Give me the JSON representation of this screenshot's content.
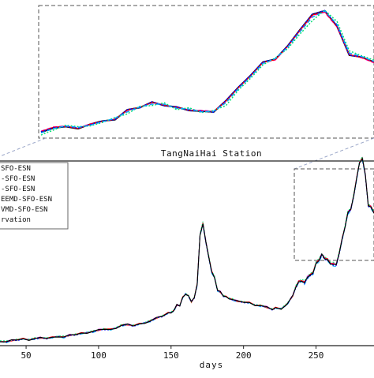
{
  "chart_data": [
    {
      "type": "line",
      "role": "zoomed-inset",
      "title": "",
      "xlim": [
        236,
        290
      ],
      "ylim": [
        150,
        510
      ],
      "axes_visible": false,
      "border_style": "dashed",
      "series": [
        {
          "key": "s1",
          "color": "#000000",
          "style": "solid",
          "x": [
            236,
            238,
            240,
            242,
            244,
            246,
            248,
            250,
            252,
            254,
            256,
            258,
            260,
            262,
            264,
            266,
            268,
            270,
            272,
            274,
            276,
            278,
            280,
            282,
            284,
            286,
            288,
            290
          ],
          "y": [
            160,
            172,
            176,
            170,
            183,
            192,
            196,
            224,
            230,
            246,
            236,
            232,
            222,
            220,
            218,
            250,
            288,
            322,
            360,
            368,
            406,
            452,
            496,
            506,
            462,
            380,
            374,
            360
          ]
        },
        {
          "key": "s2",
          "color": "#ff00ff",
          "style": "dashed",
          "x": [
            236,
            238,
            240,
            242,
            244,
            246,
            248,
            250,
            252,
            254,
            256,
            258,
            260,
            262,
            264,
            266,
            268,
            270,
            272,
            274,
            276,
            278,
            280,
            282,
            284,
            286,
            288,
            290
          ],
          "y": [
            163,
            175,
            178,
            172,
            184,
            190,
            198,
            222,
            232,
            244,
            238,
            230,
            224,
            222,
            220,
            248,
            286,
            320,
            358,
            366,
            404,
            450,
            492,
            502,
            460,
            382,
            372,
            358
          ]
        },
        {
          "key": "s3",
          "color": "#ff0000",
          "style": "solid",
          "x": [
            236,
            238,
            240,
            242,
            244,
            246,
            248,
            250,
            252,
            254,
            256,
            258,
            260,
            262,
            264,
            266,
            268,
            270,
            272,
            274,
            276,
            278,
            280,
            282,
            284,
            286,
            288,
            290
          ],
          "y": [
            162,
            174,
            177,
            171,
            183,
            191,
            197,
            223,
            231,
            245,
            237,
            231,
            223,
            221,
            219,
            249,
            287,
            321,
            359,
            367,
            405,
            451,
            494,
            504,
            461,
            381,
            373,
            359
          ]
        },
        {
          "key": "s4",
          "color": "#0000ff",
          "style": "dotted",
          "x": [
            236,
            238,
            240,
            242,
            244,
            246,
            248,
            250,
            252,
            254,
            256,
            258,
            260,
            262,
            264,
            266,
            268,
            270,
            272,
            274,
            276,
            278,
            280,
            282,
            284,
            286,
            288,
            290
          ],
          "y": [
            161,
            173,
            176,
            172,
            182,
            192,
            196,
            225,
            229,
            247,
            235,
            233,
            221,
            221,
            217,
            251,
            289,
            323,
            361,
            369,
            407,
            453,
            497,
            507,
            463,
            379,
            375,
            361
          ]
        },
        {
          "key": "s5",
          "color": "#00e070",
          "style": "dotted",
          "x": [
            236,
            238,
            240,
            242,
            244,
            246,
            248,
            250,
            252,
            254,
            256,
            258,
            260,
            262,
            264,
            266,
            268,
            270,
            272,
            274,
            276,
            278,
            280,
            282,
            284,
            286,
            288,
            290
          ],
          "y": [
            152,
            166,
            180,
            176,
            178,
            188,
            202,
            212,
            234,
            236,
            244,
            224,
            230,
            216,
            222,
            236,
            280,
            314,
            352,
            372,
            398,
            440,
            478,
            508,
            476,
            392,
            378,
            366
          ]
        },
        {
          "key": "s6",
          "color": "#00aaff",
          "style": "dashed",
          "x": [
            236,
            238,
            240,
            242,
            244,
            246,
            248,
            250,
            252,
            254,
            256,
            258,
            260,
            262,
            264,
            266,
            268,
            270,
            272,
            274,
            276,
            278,
            280,
            282,
            284,
            286,
            288,
            290
          ],
          "y": [
            158,
            170,
            178,
            174,
            180,
            190,
            200,
            218,
            232,
            240,
            240,
            228,
            226,
            218,
            220,
            244,
            284,
            318,
            356,
            370,
            402,
            446,
            488,
            506,
            468,
            386,
            376,
            362
          ]
        }
      ]
    },
    {
      "type": "line",
      "role": "main",
      "title": "TangNaiHai Station",
      "xlabel": "days",
      "ylabel": "",
      "xlim": [
        32,
        290
      ],
      "ylim": [
        0,
        500
      ],
      "xticks": [
        50,
        100,
        150,
        200,
        250
      ],
      "grid": false,
      "legend_position": "top-left",
      "legend": [
        "SFO-ESN",
        "-SFO-ESN",
        "-SFO-ESN",
        "EEMD-SFO-ESN",
        "VMD-SFO-ESN",
        "rvation"
      ],
      "zoom_box": {
        "x": [
          236,
          290
        ],
        "y": [
          150,
          510
        ]
      },
      "series": [
        {
          "key": "s1",
          "color": "#ff00ff",
          "style": "dashed"
        },
        {
          "key": "s2",
          "color": "#00aaff",
          "style": "dashed"
        },
        {
          "key": "s3",
          "color": "#ff0000",
          "style": "solid"
        },
        {
          "key": "s4",
          "color": "#0000ff",
          "style": "dotted"
        },
        {
          "key": "s5",
          "color": "#00e070",
          "style": "dotted"
        },
        {
          "key": "s6",
          "color": "#000000",
          "style": "solid"
        }
      ],
      "x": [
        32,
        36,
        40,
        44,
        48,
        52,
        56,
        60,
        64,
        68,
        72,
        76,
        80,
        84,
        88,
        92,
        96,
        100,
        104,
        108,
        112,
        116,
        120,
        124,
        128,
        132,
        136,
        140,
        144,
        148,
        150,
        152,
        154,
        156,
        158,
        160,
        162,
        164,
        166,
        168,
        170,
        172,
        174,
        176,
        178,
        180,
        182,
        184,
        186,
        188,
        190,
        192,
        196,
        200,
        204,
        208,
        212,
        216,
        220,
        222,
        226,
        230,
        234,
        236,
        238,
        240,
        242,
        244,
        246,
        248,
        250,
        252,
        254,
        256,
        258,
        260,
        262,
        264,
        266,
        268,
        270,
        272,
        274,
        276,
        278,
        280,
        282,
        284,
        286,
        288,
        290
      ],
      "y": [
        12,
        10,
        14,
        16,
        18,
        16,
        19,
        21,
        20,
        22,
        25,
        23,
        28,
        30,
        33,
        35,
        38,
        42,
        45,
        43,
        48,
        55,
        57,
        54,
        58,
        62,
        67,
        75,
        80,
        88,
        90,
        95,
        110,
        108,
        130,
        140,
        135,
        118,
        130,
        165,
        300,
        330,
        280,
        240,
        200,
        185,
        150,
        145,
        135,
        132,
        128,
        125,
        120,
        118,
        116,
        110,
        108,
        104,
        98,
        102,
        100,
        112,
        135,
        158,
        172,
        176,
        170,
        183,
        192,
        196,
        224,
        230,
        246,
        236,
        232,
        222,
        220,
        218,
        250,
        288,
        322,
        360,
        368,
        406,
        452,
        496,
        506,
        462,
        380,
        374,
        360
      ]
    }
  ]
}
